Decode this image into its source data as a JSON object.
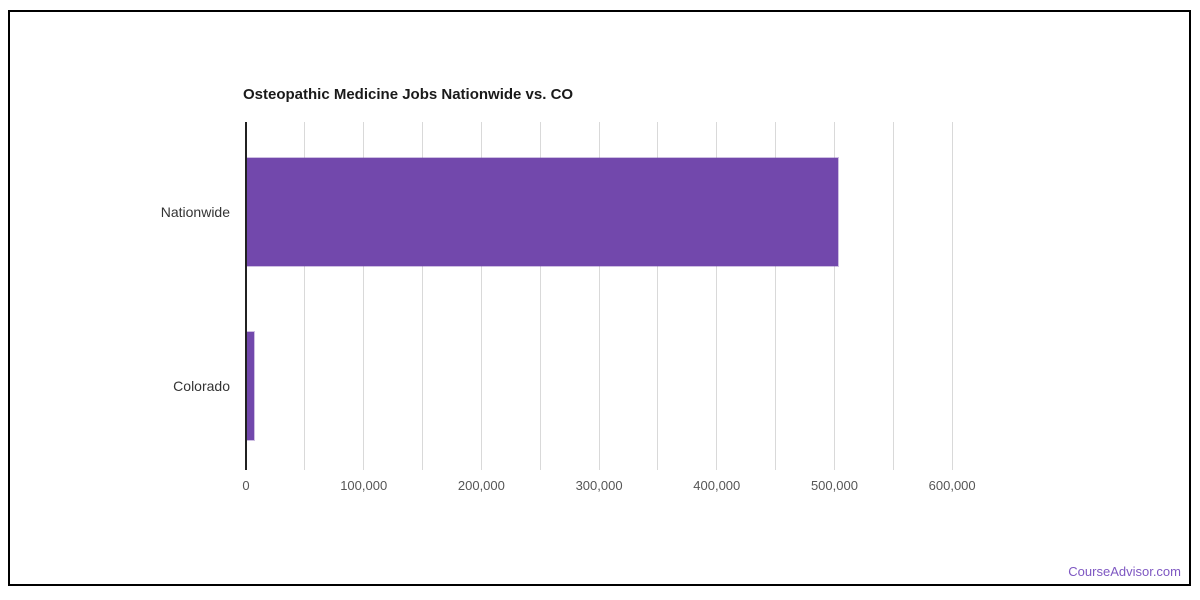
{
  "page": {
    "background": "#ffffff",
    "frame_border_color": "#000000"
  },
  "chart_data": {
    "type": "bar",
    "orientation": "horizontal",
    "title": "Osteopathic Medicine Jobs Nationwide vs. CO",
    "categories": [
      "Nationwide",
      "Colorado"
    ],
    "values": [
      503000,
      6800
    ],
    "xlabel": "",
    "ylabel": "",
    "xlim": [
      0,
      650000
    ],
    "grid": true,
    "gridline_interval": 50000,
    "gridline_max": 600000,
    "x_ticks": [
      {
        "value": 0,
        "label": "0"
      },
      {
        "value": 100000,
        "label": "100,000"
      },
      {
        "value": 200000,
        "label": "200,000"
      },
      {
        "value": 300000,
        "label": "300,000"
      },
      {
        "value": 400000,
        "label": "400,000"
      },
      {
        "value": 500000,
        "label": "500,000"
      },
      {
        "value": 600000,
        "label": "600,000"
      }
    ],
    "bar_color": "#7248ac",
    "gridline_color": "#d9d9d9",
    "axis_line_color": "#212121",
    "legend": false
  },
  "footer": {
    "watermark": "CourseAdvisor.com",
    "watermark_color": "#7e57c2"
  }
}
